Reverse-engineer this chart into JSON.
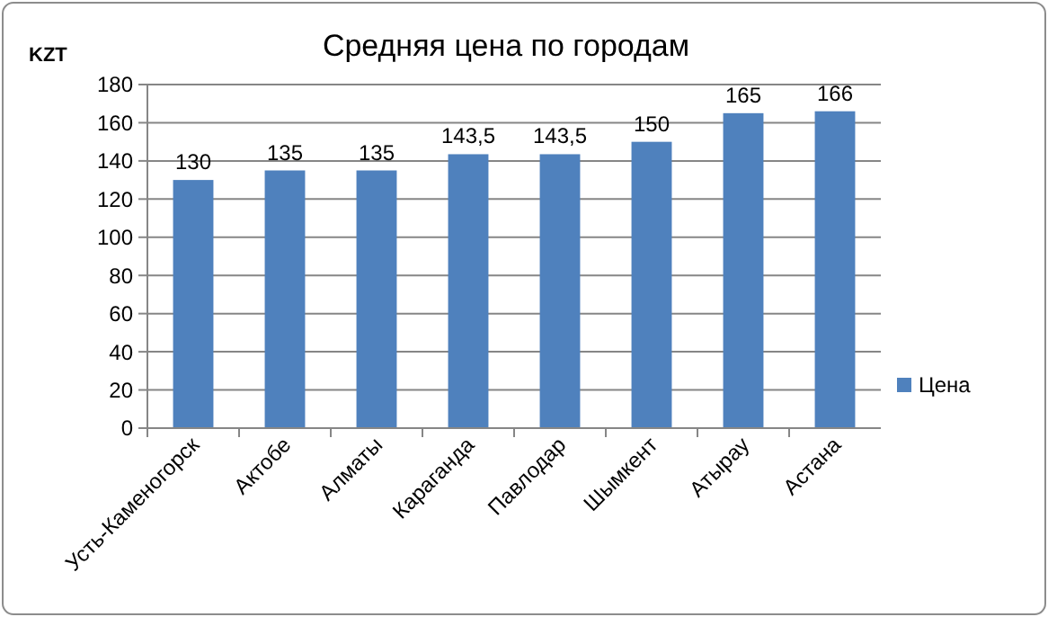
{
  "chart_data": {
    "type": "bar",
    "title": "Средняя цена по городам",
    "ylabel": "KZT",
    "categories": [
      "Усть-Каменогорск",
      "Актобе",
      "Алматы",
      "Караганда",
      "Павлодар",
      "Шымкент",
      "Атырау",
      "Астана"
    ],
    "series": [
      {
        "name": "Цена",
        "color": "#4f81bd",
        "values": [
          130,
          135,
          135,
          143.5,
          143.5,
          150,
          165,
          166
        ],
        "value_labels": [
          "130",
          "135",
          "135",
          "143,5",
          "143,5",
          "150",
          "165",
          "166"
        ]
      }
    ],
    "ylim": [
      0,
      180
    ],
    "yticks": [
      0,
      20,
      40,
      60,
      80,
      100,
      120,
      140,
      160,
      180
    ],
    "grid": "y",
    "legend": "right"
  }
}
